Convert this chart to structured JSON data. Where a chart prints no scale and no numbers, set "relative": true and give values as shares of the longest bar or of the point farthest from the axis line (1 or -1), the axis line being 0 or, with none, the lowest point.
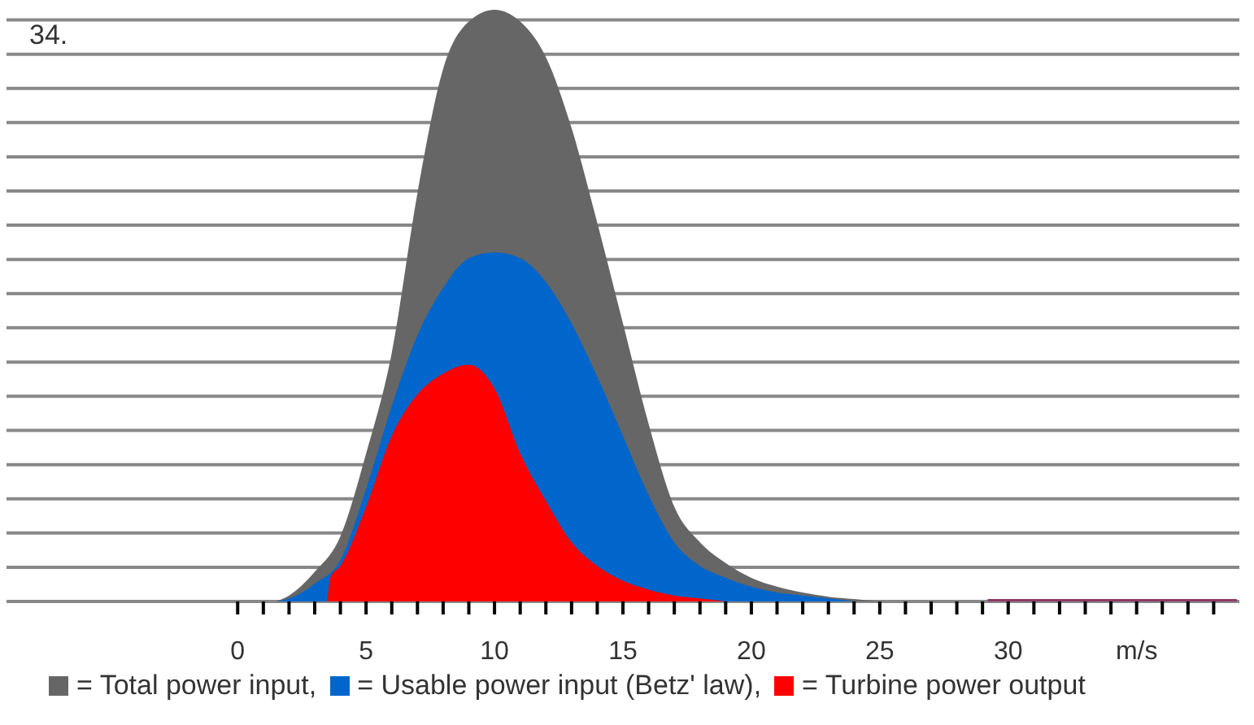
{
  "chart_data": {
    "type": "area",
    "relative": true,
    "annotations": [
      "34."
    ],
    "xlim": [
      -9,
      39
    ],
    "xticks": [
      0,
      {
        "value": 1,
        "label": null
      },
      {
        "value": 2,
        "label": null
      },
      {
        "value": 3,
        "label": null
      },
      {
        "value": 4,
        "label": null
      },
      5,
      {
        "value": 6,
        "label": null
      },
      {
        "value": 7,
        "label": null
      },
      {
        "value": 8,
        "label": null
      },
      {
        "value": 9,
        "label": null
      },
      10,
      {
        "value": 11,
        "label": null
      },
      {
        "value": 12,
        "label": null
      },
      {
        "value": 13,
        "label": null
      },
      {
        "value": 14,
        "label": null
      },
      15,
      {
        "value": 16,
        "label": null
      },
      {
        "value": 17,
        "label": null
      },
      {
        "value": 18,
        "label": null
      },
      {
        "value": 19,
        "label": null
      },
      20,
      {
        "value": 21,
        "label": null
      },
      {
        "value": 22,
        "label": null
      },
      {
        "value": 23,
        "label": null
      },
      {
        "value": 24,
        "label": null
      },
      25,
      {
        "value": 26,
        "label": null
      },
      {
        "value": 27,
        "label": null
      },
      {
        "value": 28,
        "label": null
      },
      {
        "value": 29,
        "label": null
      },
      30,
      {
        "value": 31,
        "label": null
      },
      {
        "value": 32,
        "label": null
      },
      {
        "value": 33,
        "label": null
      },
      {
        "value": 34,
        "label": null
      },
      {
        "value": 35,
        "label": "m/s"
      },
      {
        "value": 36,
        "label": null
      },
      {
        "value": 37,
        "label": null
      },
      {
        "value": 38,
        "label": null
      }
    ],
    "grid": "y",
    "legend": "bottom",
    "series": [
      {
        "name": "= Total power input,",
        "color": "#666666",
        "x": [
          1.5,
          2,
          3,
          4,
          5,
          6,
          7,
          8,
          9,
          10,
          11,
          12,
          13,
          14,
          15,
          16,
          17,
          18,
          19,
          20,
          21,
          22,
          23,
          24,
          25
        ],
        "values": [
          0,
          0.01,
          0.05,
          0.11,
          0.25,
          0.42,
          0.69,
          0.9,
          0.98,
          1,
          0.98,
          0.92,
          0.8,
          0.64,
          0.47,
          0.3,
          0.16,
          0.1,
          0.065,
          0.04,
          0.025,
          0.015,
          0.008,
          0.004,
          0
        ]
      },
      {
        "name": "= Usable power input (Betz' law),",
        "color": "#0066cc",
        "x": [
          1.5,
          2,
          3,
          4,
          5,
          6,
          7,
          8,
          9,
          10,
          11,
          12,
          13,
          14,
          15,
          16,
          17,
          18,
          19,
          20,
          21,
          22,
          23,
          24
        ],
        "values": [
          0,
          0.005,
          0.03,
          0.07,
          0.19,
          0.33,
          0.45,
          0.53,
          0.58,
          0.59,
          0.58,
          0.54,
          0.47,
          0.38,
          0.28,
          0.18,
          0.1,
          0.06,
          0.04,
          0.025,
          0.015,
          0.01,
          0.005,
          0
        ]
      },
      {
        "name": "= Turbine power output",
        "color": "#ff0000",
        "x": [
          3.5,
          3.6,
          4,
          5,
          6,
          7,
          8,
          9,
          10,
          11,
          12,
          13,
          14,
          15,
          16,
          17,
          18,
          19
        ],
        "values": [
          0,
          0.04,
          0.06,
          0.16,
          0.28,
          0.35,
          0.385,
          0.4,
          0.36,
          0.25,
          0.17,
          0.1,
          0.06,
          0.035,
          0.02,
          0.01,
          0.005,
          0
        ]
      },
      {
        "type": "line",
        "color": "#8b3a62",
        "x": [
          29.2,
          38.9
        ],
        "values": [
          0,
          0
        ]
      }
    ]
  }
}
